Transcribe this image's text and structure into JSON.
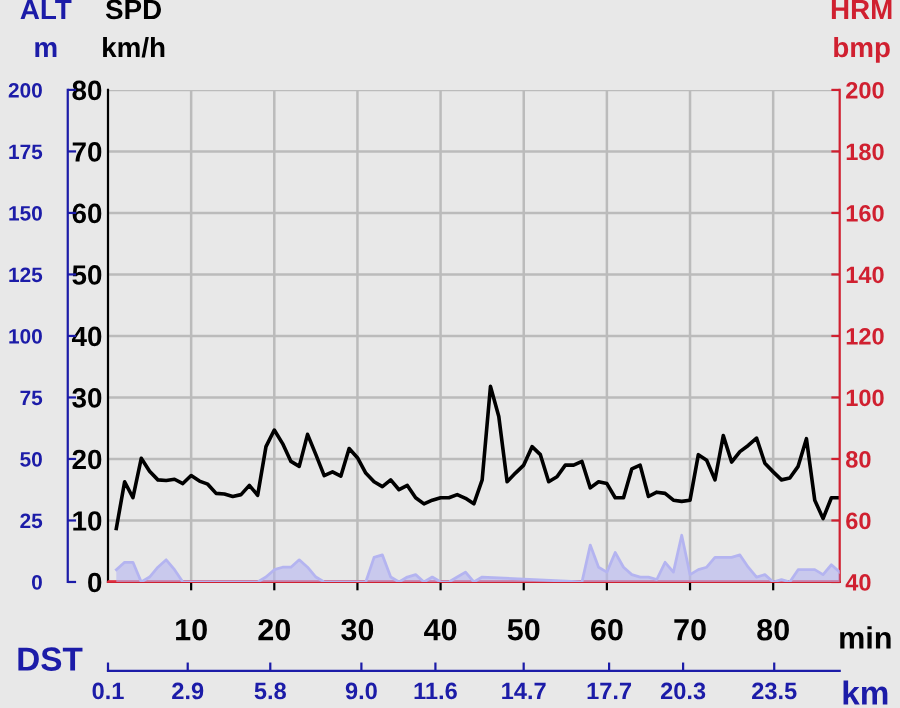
{
  "chart_data": {
    "type": "line",
    "xlabel": "min",
    "ylabel": "SPD\nkm/h",
    "y2label": "HRM\nbmp",
    "y3label": "ALT\nm",
    "x2label": "km",
    "annotations": [
      "DST"
    ],
    "xlim": [
      0,
      88
    ],
    "xticks": [
      10,
      20,
      30,
      40,
      50,
      60,
      70,
      80
    ],
    "x2lim": [
      0.1,
      25.8
    ],
    "x2ticks": [
      0.1,
      2.9,
      5.8,
      {
        "value": 9,
        "label": "9.0"
      },
      11.6,
      14.7,
      17.7,
      20.3,
      23.5
    ],
    "ylim": [
      0,
      80
    ],
    "yticks": [
      0,
      10,
      20,
      30,
      40,
      50,
      60,
      70,
      80
    ],
    "y2lim": [
      40,
      200
    ],
    "y2ticks": [
      40,
      60,
      80,
      100,
      120,
      140,
      160,
      180,
      200
    ],
    "y3lim": [
      0,
      200
    ],
    "y3ticks": [
      0,
      25,
      50,
      75,
      100,
      125,
      150,
      175,
      200
    ],
    "grid": true,
    "legend": false,
    "series": [
      {
        "type": "area",
        "axis": "y3",
        "color": "#b4b4f0",
        "x": [
          1,
          2,
          3,
          4,
          5,
          6,
          7,
          8,
          9,
          12,
          18,
          19,
          20,
          21,
          22,
          23,
          24,
          25,
          26,
          31,
          32,
          33,
          34,
          35,
          36,
          37,
          38,
          39,
          40,
          41,
          42,
          43,
          44,
          45,
          57,
          58,
          59,
          60,
          61,
          62,
          63,
          64,
          65,
          66,
          67,
          68,
          69,
          70,
          71,
          72,
          73,
          74,
          75,
          76,
          77,
          78,
          79,
          80,
          81,
          82,
          83,
          84,
          85,
          86,
          87,
          88
        ],
        "values": [
          5,
          8,
          8,
          0,
          2,
          6,
          9,
          5,
          0,
          0,
          0,
          2,
          5,
          6,
          6,
          9,
          6,
          2,
          0,
          0,
          10,
          11,
          2,
          0,
          2,
          3,
          0,
          2,
          0,
          0,
          2,
          4,
          0,
          2,
          0,
          15,
          6,
          4,
          12,
          6,
          3,
          2,
          2,
          1,
          8,
          4,
          19,
          3,
          5,
          6,
          10,
          10,
          10,
          11,
          6,
          2,
          3,
          0,
          1,
          0,
          5,
          5,
          5,
          3,
          7,
          4
        ]
      },
      {
        "type": "line",
        "axis": "y2",
        "color": "#e03040",
        "x": [
          0,
          88
        ],
        "values": [
          40,
          40
        ]
      },
      {
        "axis": "y",
        "color": "#000000",
        "x": [
          1,
          2,
          3,
          4,
          5,
          6,
          7,
          8,
          9,
          10,
          11,
          12,
          13,
          14,
          15,
          16,
          17,
          18,
          19,
          20,
          21,
          22,
          23,
          24,
          25,
          26,
          27,
          28,
          29,
          30,
          31,
          32,
          33,
          34,
          35,
          36,
          37,
          38,
          39,
          40,
          41,
          42,
          43,
          44,
          45,
          46,
          47,
          48,
          49,
          50,
          51,
          52,
          53,
          54,
          55,
          56,
          57,
          58,
          59,
          60,
          61,
          62,
          63,
          64,
          65,
          66,
          67,
          68,
          69,
          70,
          71,
          72,
          73,
          74,
          75,
          76,
          77,
          78,
          79,
          80,
          81,
          82,
          83,
          84,
          85,
          86,
          87,
          88
        ],
        "values": [
          8.7,
          16.3,
          13.7,
          20.1,
          18,
          16.6,
          16.5,
          16.7,
          16,
          17.3,
          16.4,
          15.9,
          14.4,
          14.3,
          13.9,
          14.2,
          15.7,
          14.1,
          22,
          24.7,
          22.5,
          19.6,
          18.8,
          24,
          20.7,
          17.3,
          17.9,
          17.2,
          21.7,
          20.2,
          17.7,
          16.3,
          15.5,
          16.6,
          15,
          15.7,
          13.7,
          12.7,
          13.3,
          13.7,
          13.7,
          14.2,
          13.6,
          12.7,
          16.6,
          31.8,
          26.9,
          16.3,
          17.7,
          19,
          22,
          20.7,
          16.3,
          17.1,
          19,
          19,
          19.6,
          15.3,
          16.3,
          16,
          13.7,
          13.7,
          18.4,
          19,
          13.9,
          14.6,
          14.4,
          13.3,
          13.1,
          13.3,
          20.7,
          19.8,
          16.6,
          23.8,
          19.5,
          21.2,
          22.2,
          23.4,
          19.3,
          17.9,
          16.6,
          16.9,
          18.8,
          23.3,
          13.3,
          10.3,
          13.7,
          13.7
        ]
      }
    ]
  }
}
